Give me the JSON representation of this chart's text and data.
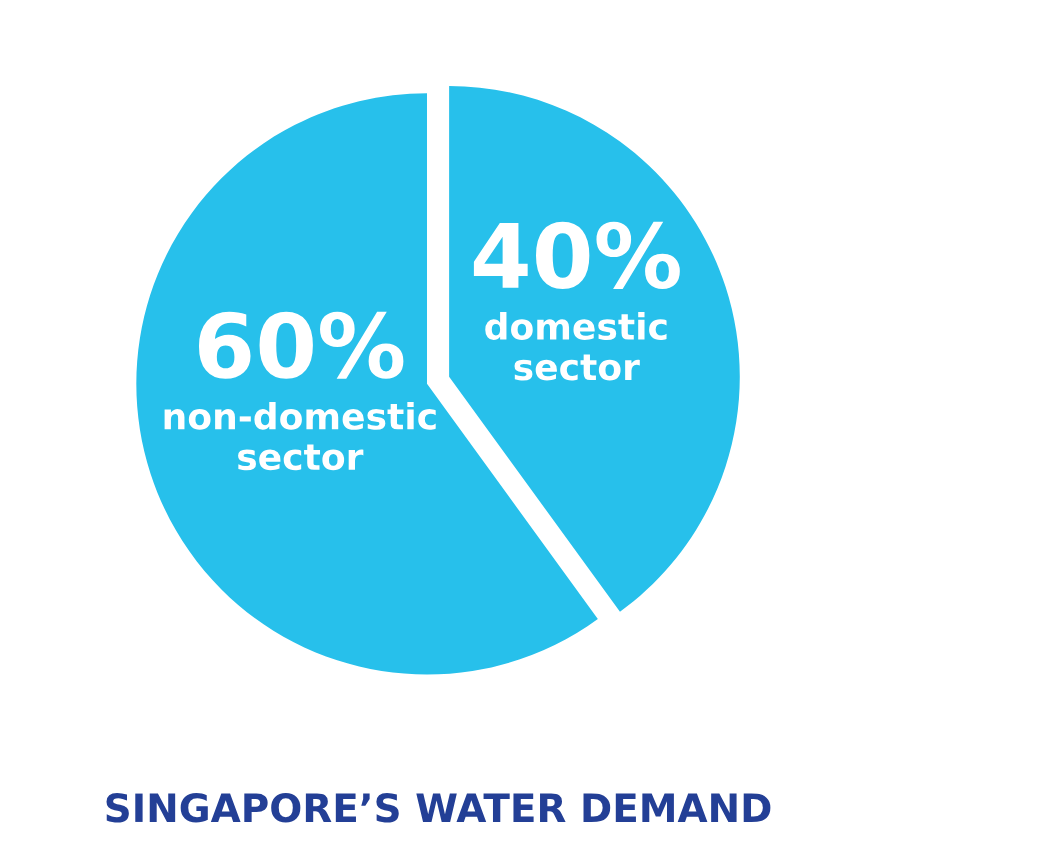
{
  "chart_data": {
    "type": "pie",
    "title": "SINGAPORE’S WATER DEMAND",
    "categories": [
      "domestic sector",
      "non-domestic sector"
    ],
    "values": [
      40,
      60
    ],
    "value_labels": [
      "40%",
      "60%"
    ],
    "colors": [
      "#27c0eb",
      "#27c0eb"
    ],
    "legend": false
  }
}
